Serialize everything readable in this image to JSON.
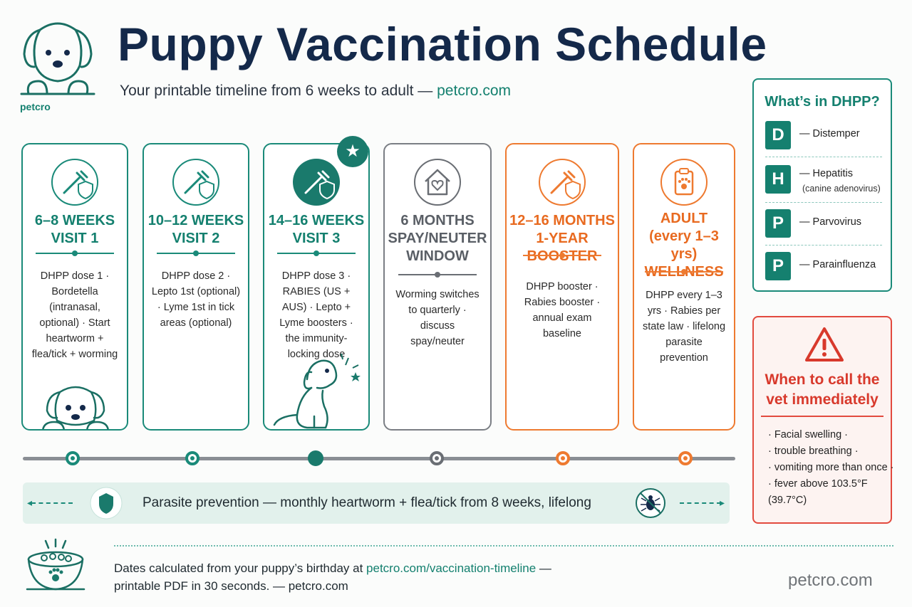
{
  "header": {
    "logo_text": "petcro",
    "title": "Puppy Vaccination Schedule",
    "subtitle_prefix": "Your printable timeline from 6 weeks to adult — ",
    "subtitle_link": "petcro.com"
  },
  "cards": [
    {
      "head": "6–8 WEEKS\nVISIT 1",
      "body": "DHPP dose 1 · Bordetella (intranasal, optional) · Start heartworm + flea/tick + worming"
    },
    {
      "head": "10–12 WEEKS\nVISIT 2",
      "body": "DHPP dose 2 · Lepto 1st (optional) · Lyme 1st in tick areas (optional)"
    },
    {
      "head": "14–16 WEEKS\nVISIT 3",
      "body": "DHPP dose 3 · RABIES (US + AUS) · Lepto + Lyme boosters · the immunity-locking dose"
    },
    {
      "head": "6 MONTHS\nSPAY/NEUTER\nWINDOW",
      "body": "Worming switches to quarterly · discuss spay/neuter"
    },
    {
      "head": "12–16 MONTHS\n1-YEAR BOOSTER",
      "body": "DHPP booster · Rabies booster · annual exam baseline"
    },
    {
      "head": "ADULT\n(every 1–3 yrs)\nWELLNESS",
      "body": "DHPP every 1–3 yrs · Rabies per state law · lifelong parasite prevention"
    }
  ],
  "parasite_banner": "Parasite prevention — monthly heartworm + flea/tick from 8 weeks, lifelong",
  "dhpp": {
    "title": "What’s in DHPP?",
    "items": [
      {
        "letter": "D",
        "name": "— Distemper",
        "sub": ""
      },
      {
        "letter": "H",
        "name": "— Hepatitis",
        "sub": "(canine adenovirus)"
      },
      {
        "letter": "P",
        "name": "— Parvovirus",
        "sub": ""
      },
      {
        "letter": "P",
        "name": "— Parainfluenza",
        "sub": ""
      }
    ]
  },
  "vet": {
    "title": "When to call the\nvet immediately",
    "items": [
      "· Facial swelling ·",
      "· trouble breathing ·",
      "· vomiting more than once ·",
      "· fever above 103.5°F",
      "(39.7°C)"
    ]
  },
  "footer": {
    "line1_prefix": "Dates calculated from your puppy’s birthday at ",
    "line1_link": "petcro.com/vaccination-timeline",
    "line1_suffix": " —",
    "line2": "printable PDF in 30 seconds. — petcro.com",
    "brand": "petcro.com"
  },
  "colors": {
    "teal": "#1a8a79",
    "navy": "#14294a",
    "orange": "#ee7a30",
    "gray": "#7a7e84",
    "red": "#e24a3e"
  }
}
